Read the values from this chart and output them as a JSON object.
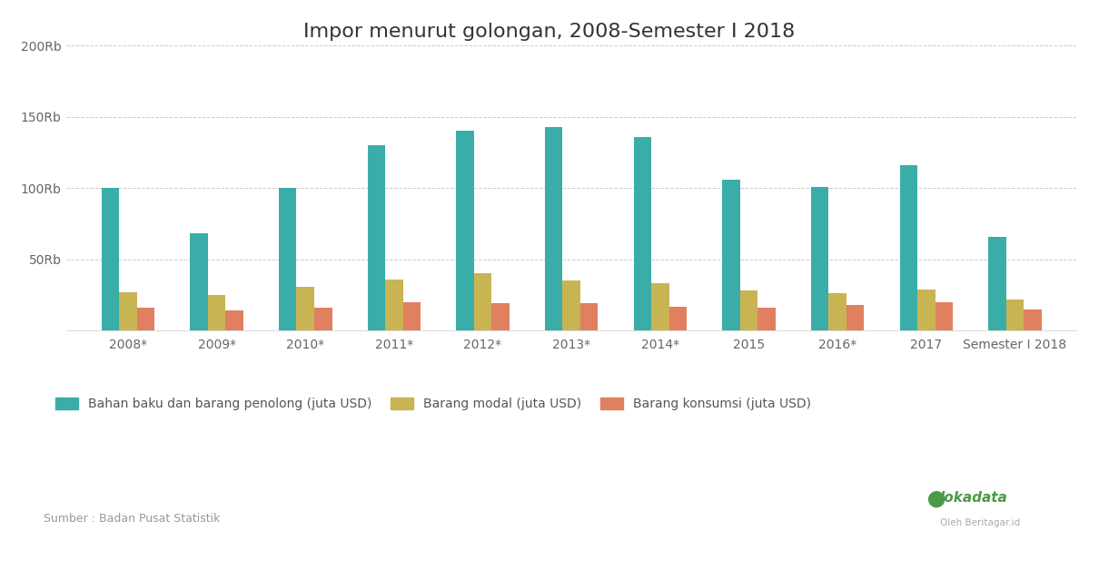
{
  "title": "Impor menurut golongan, 2008-Semester I 2018",
  "categories": [
    "2008*",
    "2009*",
    "2010*",
    "2011*",
    "2012*",
    "2013*",
    "2014*",
    "2015",
    "2016*",
    "2017",
    "Semester I 2018"
  ],
  "bahan_baku": [
    100000,
    68000,
    100000,
    130000,
    140000,
    143000,
    136000,
    106000,
    101000,
    116000,
    66000
  ],
  "barang_modal": [
    27000,
    25000,
    31000,
    36000,
    40000,
    35000,
    33000,
    28000,
    26000,
    29000,
    22000
  ],
  "barang_konsumsi": [
    16000,
    14000,
    16000,
    20000,
    19000,
    19000,
    17000,
    16000,
    18000,
    20000,
    15000
  ],
  "color_bahan": "#3aada8",
  "color_modal": "#c9b454",
  "color_konsumsi": "#e08060",
  "yticks": [
    0,
    50000,
    100000,
    150000,
    200000
  ],
  "ytick_labels": [
    "",
    "50Rb",
    "100Rb",
    "150Rb",
    "200Rb"
  ],
  "legend_bahan": "Bahan baku dan barang penolong (juta USD)",
  "legend_modal": "Barang modal (juta USD)",
  "legend_konsumsi": "Barang konsumsi (juta USD)",
  "source": "Sumber : Badan Pusat Statistik",
  "background_color": "#ffffff",
  "grid_color": "#cccccc",
  "title_fontsize": 16,
  "tick_fontsize": 10,
  "legend_fontsize": 10
}
